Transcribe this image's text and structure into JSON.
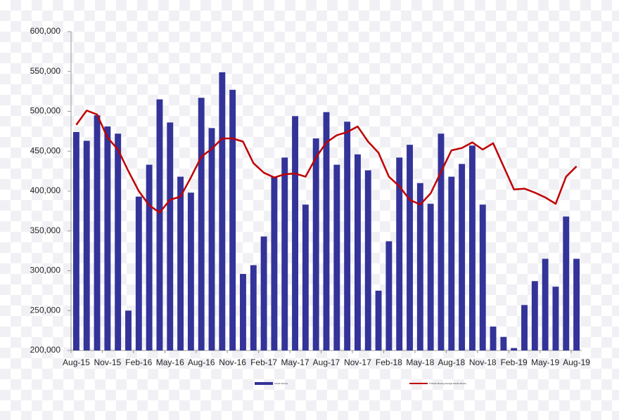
{
  "chart_data": {
    "type": "bar-line",
    "categories": [
      "Aug-15",
      null,
      null,
      "Nov-15",
      null,
      null,
      "Feb-16",
      null,
      null,
      "May-16",
      null,
      null,
      "Aug-16",
      null,
      null,
      "Nov-16",
      null,
      null,
      "Feb-17",
      null,
      null,
      "May-17",
      null,
      null,
      "Aug-17",
      null,
      null,
      "Nov-17",
      null,
      null,
      "Feb-18",
      null,
      null,
      "May-18",
      null,
      null,
      "Aug-18",
      null,
      null,
      "Nov-18",
      null,
      null,
      "Feb-19",
      null,
      null,
      "May-19",
      null,
      null,
      "Aug-19"
    ],
    "series": [
      {
        "name": "Actual Volume",
        "type": "bar",
        "color": "#333399",
        "values": [
          474000,
          463000,
          495000,
          481000,
          472000,
          250000,
          393000,
          433000,
          515000,
          486000,
          418000,
          398000,
          517000,
          479000,
          549000,
          527000,
          296000,
          307000,
          343000,
          418000,
          442000,
          494000,
          383000,
          466000,
          499000,
          433000,
          487000,
          446000,
          426000,
          275000,
          337000,
          442000,
          458000,
          410000,
          384000,
          472000,
          418000,
          434000,
          457000,
          383000,
          230000,
          217000,
          203000,
          257000,
          287000,
          315000,
          280000,
          368000,
          315000
        ]
      },
      {
        "name": "3 Month Moving Average Actual Volume",
        "type": "line",
        "color": "#c00000",
        "values": [
          483000,
          501000,
          496000,
          467000,
          452000,
          425000,
          400000,
          382000,
          373000,
          389000,
          393000,
          417000,
          443000,
          453000,
          466000,
          466000,
          462000,
          435000,
          423000,
          417000,
          421000,
          422000,
          418000,
          442000,
          461000,
          470000,
          474000,
          481000,
          462000,
          448000,
          418000,
          406000,
          389000,
          383000,
          397000,
          424000,
          451000,
          454000,
          461000,
          452000,
          460000,
          431000,
          402000,
          403000,
          398000,
          392000,
          384000,
          418000,
          431000
        ]
      }
    ],
    "ylim": [
      200000,
      600000
    ],
    "yticks": [
      {
        "value": 200000,
        "label": "200,000"
      },
      {
        "value": 250000,
        "label": "250,000"
      },
      {
        "value": 300000,
        "label": "300,000"
      },
      {
        "value": 350000,
        "label": "350,000"
      },
      {
        "value": 400000,
        "label": "400,000"
      },
      {
        "value": 450000,
        "label": "450,000"
      },
      {
        "value": 500000,
        "label": "500,000"
      },
      {
        "value": 550000,
        "label": "550,000"
      },
      {
        "value": 600000,
        "label": "600,000"
      }
    ],
    "grid": false,
    "legend": "bottom"
  }
}
